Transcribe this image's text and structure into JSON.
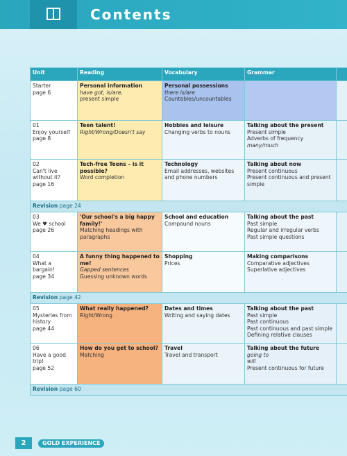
{
  "header": {
    "title": "Contents"
  },
  "table": {
    "headers": [
      "Unit",
      "Reading",
      "Vocabulary",
      "Grammar"
    ],
    "rows": [
      {
        "unit": [
          "Starter",
          "page 6"
        ],
        "reading": [
          "Personal information",
          "have got, is/are,",
          "present simple"
        ],
        "vocabulary": [
          "Personal possessions",
          "there is/are",
          "Countables/uncountables"
        ],
        "grammar": []
      },
      {
        "unit": [
          "01",
          "Enjoy yourself",
          "page 8"
        ],
        "reading": [
          "Teen talent!",
          "Right/Wrong/Doesn't say"
        ],
        "vocabulary": [
          "Hobbies and leisure",
          "Changing verbs to nouns"
        ],
        "grammar": [
          "Talking about the present",
          "Present simple",
          "Adverbs of frequency",
          "many/much"
        ]
      },
      {
        "unit": [
          "02",
          "Can't live without it?",
          "page 16"
        ],
        "reading": [
          "Tech-free Teens – is it possible?",
          "Word completion"
        ],
        "vocabulary": [
          "Technology",
          "Email addresses, websites and phone numbers"
        ],
        "grammar": [
          "Talking about now",
          "Present continuous",
          "Present continuous and present simple"
        ]
      },
      {
        "revision": [
          "Revision",
          "page 24"
        ]
      },
      {
        "unit": [
          "03",
          "We ♥ school",
          "page 26"
        ],
        "reading": [
          "'Our school's a big happy family!'",
          "Matching headings with paragraphs"
        ],
        "vocabulary": [
          "School and education",
          "Compound nouns"
        ],
        "grammar": [
          "Talking about the past",
          "Past simple",
          "Regular and irregular verbs",
          "Past simple questions"
        ]
      },
      {
        "unit": [
          "04",
          "What a bargain!",
          "page 34"
        ],
        "reading": [
          "A funny thing happened to me!",
          "Gapped sentences",
          "Guessing unknown words"
        ],
        "vocabulary": [
          "Shopping",
          "Prices"
        ],
        "grammar": [
          "Making comparisons",
          "Comparative adjectives",
          "Superlative adjectives"
        ]
      },
      {
        "revision": [
          "Revision",
          "page 42"
        ]
      },
      {
        "unit": [
          "05",
          "Mysteries from history",
          "page 44"
        ],
        "reading": [
          "What really happened?",
          "Right/Wrong"
        ],
        "vocabulary": [
          "Dates and times",
          "Writing and saying dates"
        ],
        "grammar": [
          "Talking about the past",
          "Past simple",
          "Past continuous",
          "Past continuous and past simple",
          "Defining relative clauses"
        ]
      },
      {
        "unit": [
          "06",
          "Have a good trip!",
          "page 52"
        ],
        "reading": [
          "How do you get to school?",
          "Matching"
        ],
        "vocabulary": [
          "Travel",
          "Travel and transport"
        ],
        "grammar": [
          "Talking about the future",
          "going to",
          "will",
          "Present continuous for future"
        ]
      },
      {
        "revision": [
          "Revision",
          "page 60"
        ]
      }
    ]
  },
  "footer": {
    "page": "2",
    "brand": "GOLD EXPERIENCE"
  }
}
